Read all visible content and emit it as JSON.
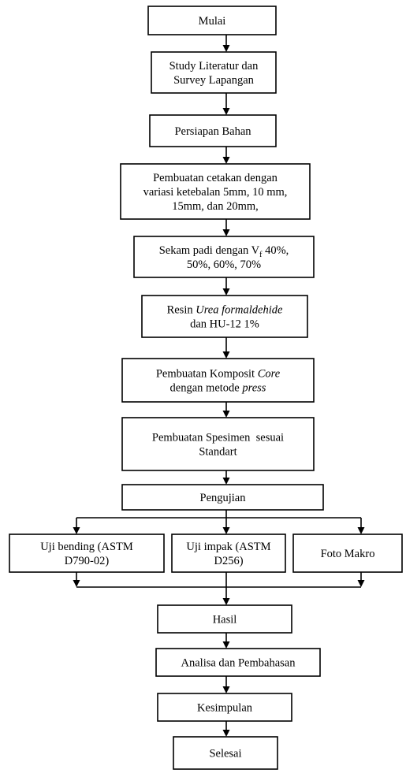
{
  "nodes": [
    {
      "lines": [
        [
          {
            "text": "Mulai"
          }
        ]
      ]
    },
    {
      "lines": [
        [
          {
            "text": "Study Literatur dan"
          }
        ],
        [
          {
            "text": "Survey Lapangan"
          }
        ]
      ]
    },
    {
      "lines": [
        [
          {
            "text": "Persiapan Bahan"
          }
        ]
      ]
    },
    {
      "lines": [
        [
          {
            "text": "Pembuatan cetakan dengan"
          }
        ],
        [
          {
            "text": "variasi ketebalan 5mm, 10 mm,"
          }
        ],
        [
          {
            "text": "15mm, dan 20mm,"
          }
        ]
      ]
    },
    {
      "lines": [
        [
          {
            "text": "Sekam padi dengan V"
          },
          {
            "text": "f",
            "style": "sub"
          },
          {
            "text": " 40%,"
          }
        ],
        [
          {
            "text": "50%, 60%, 70%"
          }
        ]
      ]
    },
    {
      "lines": [
        [
          {
            "text": "Resin "
          },
          {
            "text": "Urea formaldehide",
            "style": "italic"
          }
        ],
        [
          {
            "text": "dan HU-12 1%"
          }
        ]
      ]
    },
    {
      "lines": [
        [
          {
            "text": "Pembuatan Komposit "
          },
          {
            "text": "Core",
            "style": "italic"
          }
        ],
        [
          {
            "text": "dengan metode "
          },
          {
            "text": "press",
            "style": "italic"
          }
        ]
      ]
    },
    {
      "lines": [
        [
          {
            "text": "Pembuatan Spesimen  sesuai"
          }
        ],
        [
          {
            "text": "Standart"
          }
        ]
      ]
    },
    {
      "lines": [
        [
          {
            "text": "Pengujian"
          }
        ]
      ]
    },
    {
      "lines": [
        [
          {
            "text": "Uji bending (ASTM"
          }
        ],
        [
          {
            "text": "D790-02)"
          }
        ]
      ]
    },
    {
      "lines": [
        [
          {
            "text": "Uji impak (ASTM"
          }
        ],
        [
          {
            "text": "D256)"
          }
        ]
      ]
    },
    {
      "lines": [
        [
          {
            "text": "Foto Makro"
          }
        ]
      ]
    },
    {
      "lines": [
        [
          {
            "text": "Hasil"
          }
        ]
      ]
    },
    {
      "lines": [
        [
          {
            "text": "Analisa dan Pembahasan"
          }
        ]
      ]
    },
    {
      "lines": [
        [
          {
            "text": "Kesimpulan"
          }
        ]
      ]
    },
    {
      "lines": [
        [
          {
            "text": "Selesai"
          }
        ]
      ]
    }
  ]
}
